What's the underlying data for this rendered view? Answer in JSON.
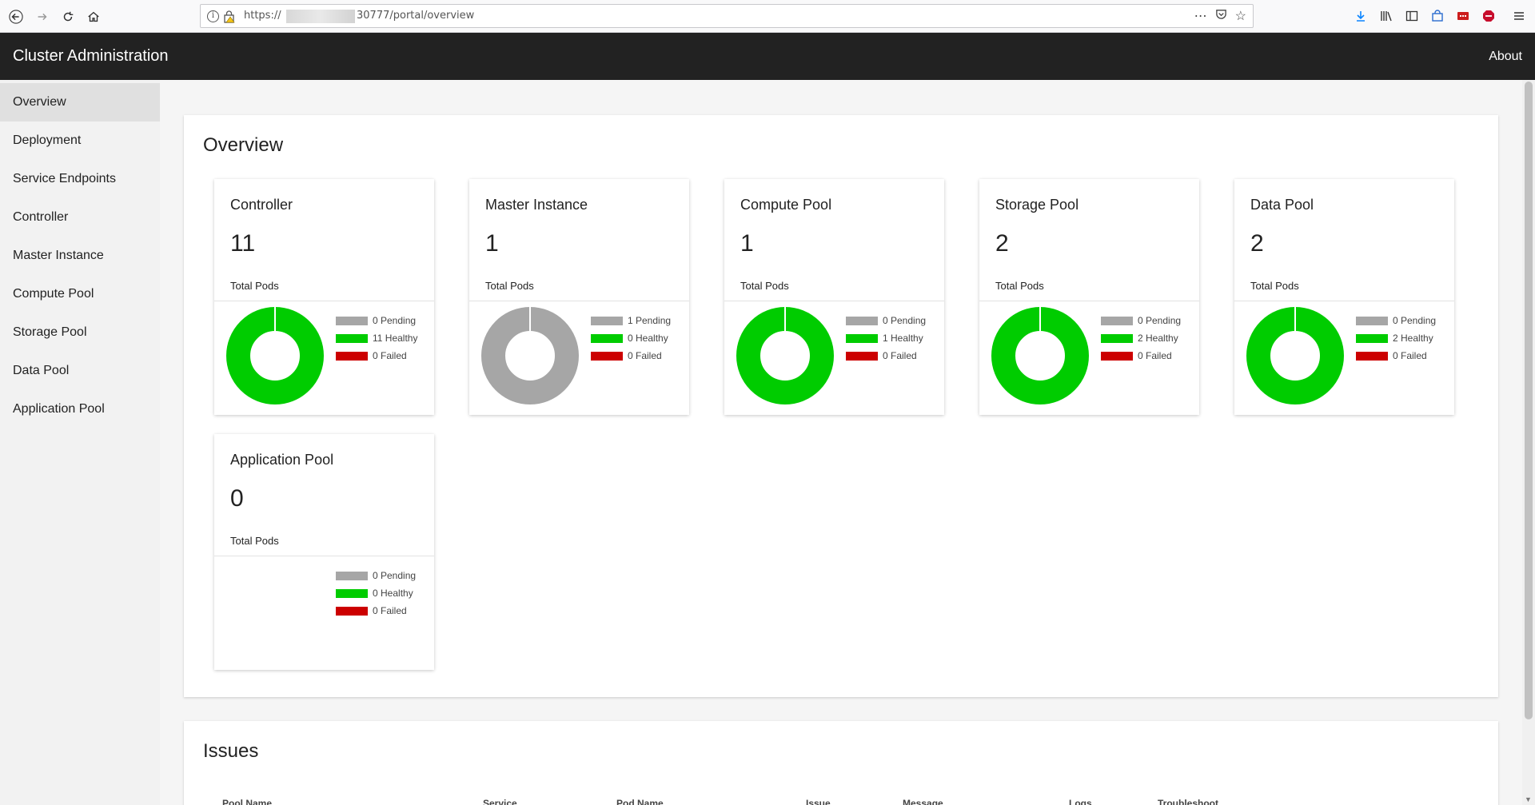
{
  "browser": {
    "url_prefix": "https://",
    "url_suffix": "30777/portal/overview",
    "info_glyph": "i"
  },
  "header": {
    "title": "Cluster Administration",
    "about_label": "About"
  },
  "sidebar": {
    "items": [
      {
        "label": "Overview"
      },
      {
        "label": "Deployment"
      },
      {
        "label": "Service Endpoints"
      },
      {
        "label": "Controller"
      },
      {
        "label": "Master Instance"
      },
      {
        "label": "Compute Pool"
      },
      {
        "label": "Storage Pool"
      },
      {
        "label": "Data Pool"
      },
      {
        "label": "Application Pool"
      }
    ]
  },
  "overview": {
    "title": "Overview",
    "sub_label": "Total Pods",
    "colors": {
      "pending": "#a6a6a6",
      "healthy": "#00cc00",
      "failed": "#cc0000"
    },
    "cards": [
      {
        "title": "Controller",
        "total": "11",
        "pending": 0,
        "healthy": 11,
        "failed": 0,
        "pending_label": "0 Pending",
        "healthy_label": "11 Healthy",
        "failed_label": "0 Failed"
      },
      {
        "title": "Master Instance",
        "total": "1",
        "pending": 1,
        "healthy": 0,
        "failed": 0,
        "pending_label": "1 Pending",
        "healthy_label": "0 Healthy",
        "failed_label": "0 Failed"
      },
      {
        "title": "Compute Pool",
        "total": "1",
        "pending": 0,
        "healthy": 1,
        "failed": 0,
        "pending_label": "0 Pending",
        "healthy_label": "1 Healthy",
        "failed_label": "0 Failed"
      },
      {
        "title": "Storage Pool",
        "total": "2",
        "pending": 0,
        "healthy": 2,
        "failed": 0,
        "pending_label": "0 Pending",
        "healthy_label": "2 Healthy",
        "failed_label": "0 Failed"
      },
      {
        "title": "Data Pool",
        "total": "2",
        "pending": 0,
        "healthy": 2,
        "failed": 0,
        "pending_label": "0 Pending",
        "healthy_label": "2 Healthy",
        "failed_label": "0 Failed"
      },
      {
        "title": "Application Pool",
        "total": "0",
        "pending": 0,
        "healthy": 0,
        "failed": 0,
        "pending_label": "0 Pending",
        "healthy_label": "0 Healthy",
        "failed_label": "0 Failed"
      }
    ]
  },
  "issues": {
    "title": "Issues",
    "columns": [
      "Pool Name",
      "Service",
      "Pod Name",
      "Issue",
      "Message",
      "Logs",
      "Troubleshoot"
    ]
  }
}
